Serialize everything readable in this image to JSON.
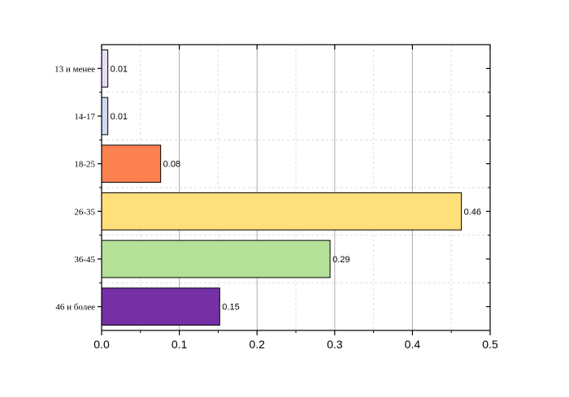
{
  "chart_data": {
    "type": "bar",
    "orientation": "horizontal",
    "categories": [
      "13 и менее",
      "14-17",
      "18-25",
      "26-35",
      "36-45",
      "46 и более"
    ],
    "values": [
      0.01,
      0.01,
      0.08,
      0.46,
      0.29,
      0.15
    ],
    "plotted_values": [
      0.008,
      0.008,
      0.076,
      0.463,
      0.294,
      0.152
    ],
    "data_labels": [
      "0.01",
      "0.01",
      "0.08",
      "0.46",
      "0.29",
      "0.15"
    ],
    "bar_colors": [
      "#e9dcfb",
      "#cfd9f0",
      "#fc8150",
      "#fedf7a",
      "#b4e098",
      "#7530a6"
    ],
    "xlim": [
      0,
      0.5
    ],
    "x_ticks": [
      0.0,
      0.1,
      0.2,
      0.3,
      0.4,
      0.5
    ],
    "x_tick_labels": [
      "0.0",
      "0.1",
      "0.2",
      "0.3",
      "0.4",
      "0.5"
    ],
    "title": "",
    "xlabel": "",
    "ylabel": "",
    "grid": true
  }
}
